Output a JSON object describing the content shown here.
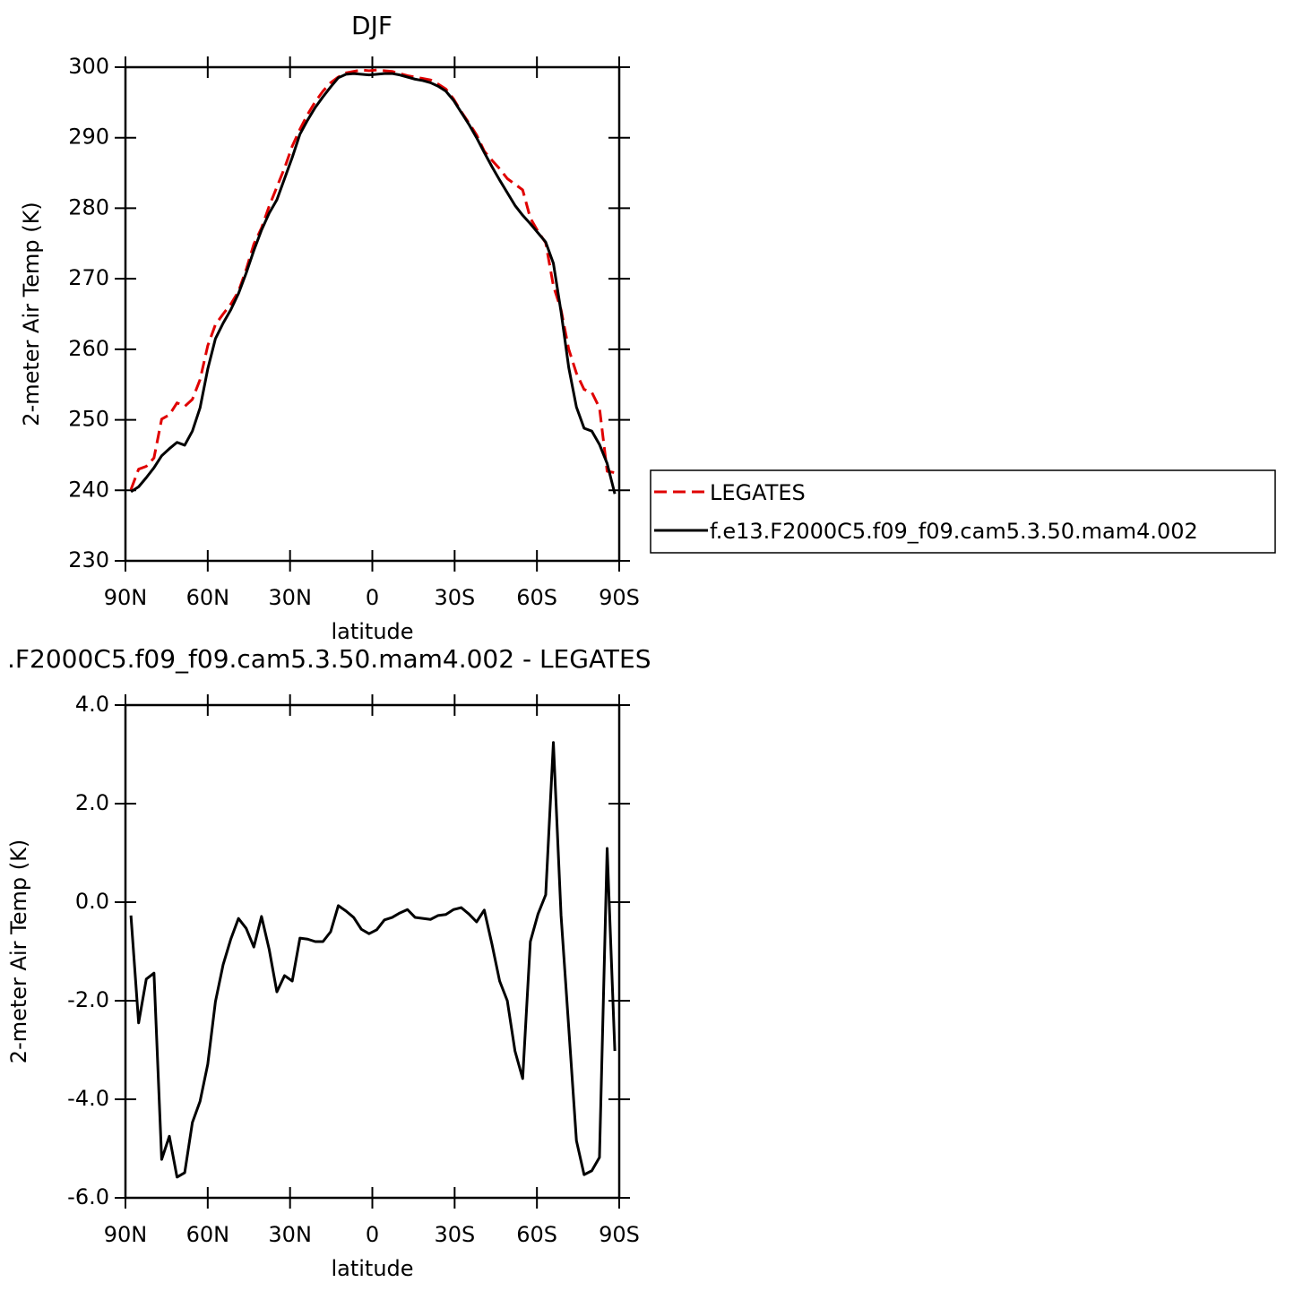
{
  "chart_data": [
    {
      "type": "line",
      "title": "DJF",
      "xlabel": "latitude",
      "ylabel": "2-meter Air Temp (K)",
      "x": [
        88,
        85.2,
        82.4,
        79.6,
        76.8,
        74,
        71.2,
        68.4,
        65.6,
        62.8,
        60,
        57.2,
        54.4,
        51.6,
        48.8,
        46,
        43.2,
        40.4,
        37.6,
        34.8,
        32,
        29.2,
        26.4,
        23.6,
        20.8,
        18,
        15.2,
        12.4,
        9.6,
        6.8,
        4,
        1.2,
        -1.6,
        -4.4,
        -7.2,
        -10,
        -12.8,
        -15.6,
        -18.4,
        -21.2,
        -24,
        -26.8,
        -29.6,
        -32.4,
        -35.2,
        -38,
        -40.8,
        -43.6,
        -46.4,
        -49.2,
        -52,
        -54.8,
        -57.6,
        -60.4,
        -63.2,
        -66,
        -68.8,
        -71.6,
        -74.4,
        -77.2,
        -80,
        -82.8,
        -85.6,
        -88.4
      ],
      "series": [
        {
          "name": "LEGATES",
          "color": "#e00000",
          "line_style": "dashed",
          "values": [
            240.1,
            243.0,
            243.4,
            244.6,
            250.1,
            250.7,
            252.4,
            251.9,
            252.9,
            255.7,
            260.5,
            263.5,
            265.0,
            266.4,
            268.2,
            271.3,
            274.9,
            277.2,
            280.3,
            283.0,
            285.7,
            288.8,
            291.2,
            293.3,
            295.1,
            296.6,
            297.8,
            298.6,
            299.2,
            299.4,
            299.6,
            299.5,
            299.6,
            299.5,
            299.4,
            299.1,
            298.8,
            298.6,
            298.4,
            298.2,
            297.6,
            296.9,
            295.5,
            293.7,
            292.1,
            290.4,
            288.1,
            286.8,
            285.6,
            284.2,
            283.4,
            282.6,
            278.6,
            276.7,
            275.1,
            269.0,
            265.6,
            260.0,
            256.6,
            254.3,
            253.9,
            251.7,
            242.7,
            242.5
          ]
        },
        {
          "name": "f.e13.F2000C5.f09_f09.cam5.3.50.mam4.002",
          "color": "#000000",
          "line_style": "solid",
          "values": [
            239.8,
            240.5,
            241.8,
            243.2,
            244.9,
            245.9,
            246.8,
            246.4,
            248.4,
            251.7,
            257.2,
            261.5,
            263.7,
            265.6,
            267.9,
            270.8,
            274.0,
            276.9,
            279.3,
            281.2,
            284.2,
            287.2,
            290.5,
            292.5,
            294.3,
            295.8,
            297.2,
            298.5,
            299.0,
            299.1,
            299.0,
            298.9,
            299.0,
            299.1,
            299.1,
            298.9,
            298.6,
            298.3,
            298.1,
            297.8,
            297.3,
            296.6,
            295.3,
            293.6,
            291.9,
            290.0,
            287.9,
            285.9,
            284.0,
            282.2,
            280.4,
            279.0,
            277.8,
            276.5,
            275.2,
            272.2,
            265.3,
            257.4,
            251.8,
            248.8,
            248.4,
            246.5,
            243.8,
            239.5
          ]
        }
      ],
      "xlim": [
        90,
        -90
      ],
      "xticks": [
        {
          "value": 90,
          "label": "90N"
        },
        {
          "value": 60,
          "label": "60N"
        },
        {
          "value": 30,
          "label": "30N"
        },
        0,
        {
          "value": -30,
          "label": "30S"
        },
        {
          "value": -60,
          "label": "60S"
        },
        {
          "value": -90,
          "label": "90S"
        }
      ],
      "ylim": [
        230,
        300
      ],
      "yticks": [
        230,
        240,
        250,
        260,
        270,
        280,
        290,
        300
      ],
      "legend": "outside-right"
    },
    {
      "type": "line",
      "title": ".F2000C5.f09_f09.cam5.3.50.mam4.002 - LEGATES",
      "xlabel": "latitude",
      "ylabel": "2-meter Air Temp (K)",
      "x": [
        88,
        85.2,
        82.4,
        79.6,
        76.8,
        74,
        71.2,
        68.4,
        65.6,
        62.8,
        60,
        57.2,
        54.4,
        51.6,
        48.8,
        46,
        43.2,
        40.4,
        37.6,
        34.8,
        32,
        29.2,
        26.4,
        23.6,
        20.8,
        18,
        15.2,
        12.4,
        9.6,
        6.8,
        4,
        1.2,
        -1.6,
        -4.4,
        -7.2,
        -10,
        -12.8,
        -15.6,
        -18.4,
        -21.2,
        -24,
        -26.8,
        -29.6,
        -32.4,
        -35.2,
        -38,
        -40.8,
        -43.6,
        -46.4,
        -49.2,
        -52,
        -54.8,
        -57.6,
        -60.4,
        -63.2,
        -66,
        -68.8,
        -71.6,
        -74.4,
        -77.2,
        -80,
        -82.8,
        -85.6,
        -88.4
      ],
      "series": [
        {
          "color": "#000000",
          "line_style": "solid",
          "values": [
            -0.27,
            -2.45,
            -1.56,
            -1.44,
            -5.22,
            -4.75,
            -5.58,
            -5.49,
            -4.47,
            -4.04,
            -3.29,
            -2.02,
            -1.27,
            -0.75,
            -0.33,
            -0.53,
            -0.91,
            -0.29,
            -0.96,
            -1.82,
            -1.49,
            -1.6,
            -0.73,
            -0.75,
            -0.8,
            -0.8,
            -0.6,
            -0.07,
            -0.18,
            -0.31,
            -0.55,
            -0.64,
            -0.56,
            -0.36,
            -0.31,
            -0.22,
            -0.15,
            -0.31,
            -0.33,
            -0.35,
            -0.27,
            -0.25,
            -0.15,
            -0.11,
            -0.24,
            -0.4,
            -0.16,
            -0.85,
            -1.6,
            -2.0,
            -3.02,
            -3.58,
            -0.8,
            -0.24,
            0.15,
            3.24,
            -0.27,
            -2.55,
            -4.84,
            -5.53,
            -5.45,
            -5.18,
            1.09,
            -3.02
          ]
        }
      ],
      "xlim": [
        90,
        -90
      ],
      "xticks": [
        {
          "value": 90,
          "label": "90N"
        },
        {
          "value": 60,
          "label": "60N"
        },
        {
          "value": 30,
          "label": "30N"
        },
        0,
        {
          "value": -30,
          "label": "30S"
        },
        {
          "value": -60,
          "label": "60S"
        },
        {
          "value": -90,
          "label": "90S"
        }
      ],
      "ylim": [
        -6,
        4
      ],
      "yticks": [
        {
          "value": -6,
          "label": "-6.0"
        },
        {
          "value": -4,
          "label": "-4.0"
        },
        {
          "value": -2,
          "label": "-2.0"
        },
        {
          "value": 0,
          "label": "0.0"
        },
        {
          "value": 2,
          "label": "2.0"
        },
        {
          "value": 4,
          "label": "4.0"
        }
      ]
    }
  ]
}
